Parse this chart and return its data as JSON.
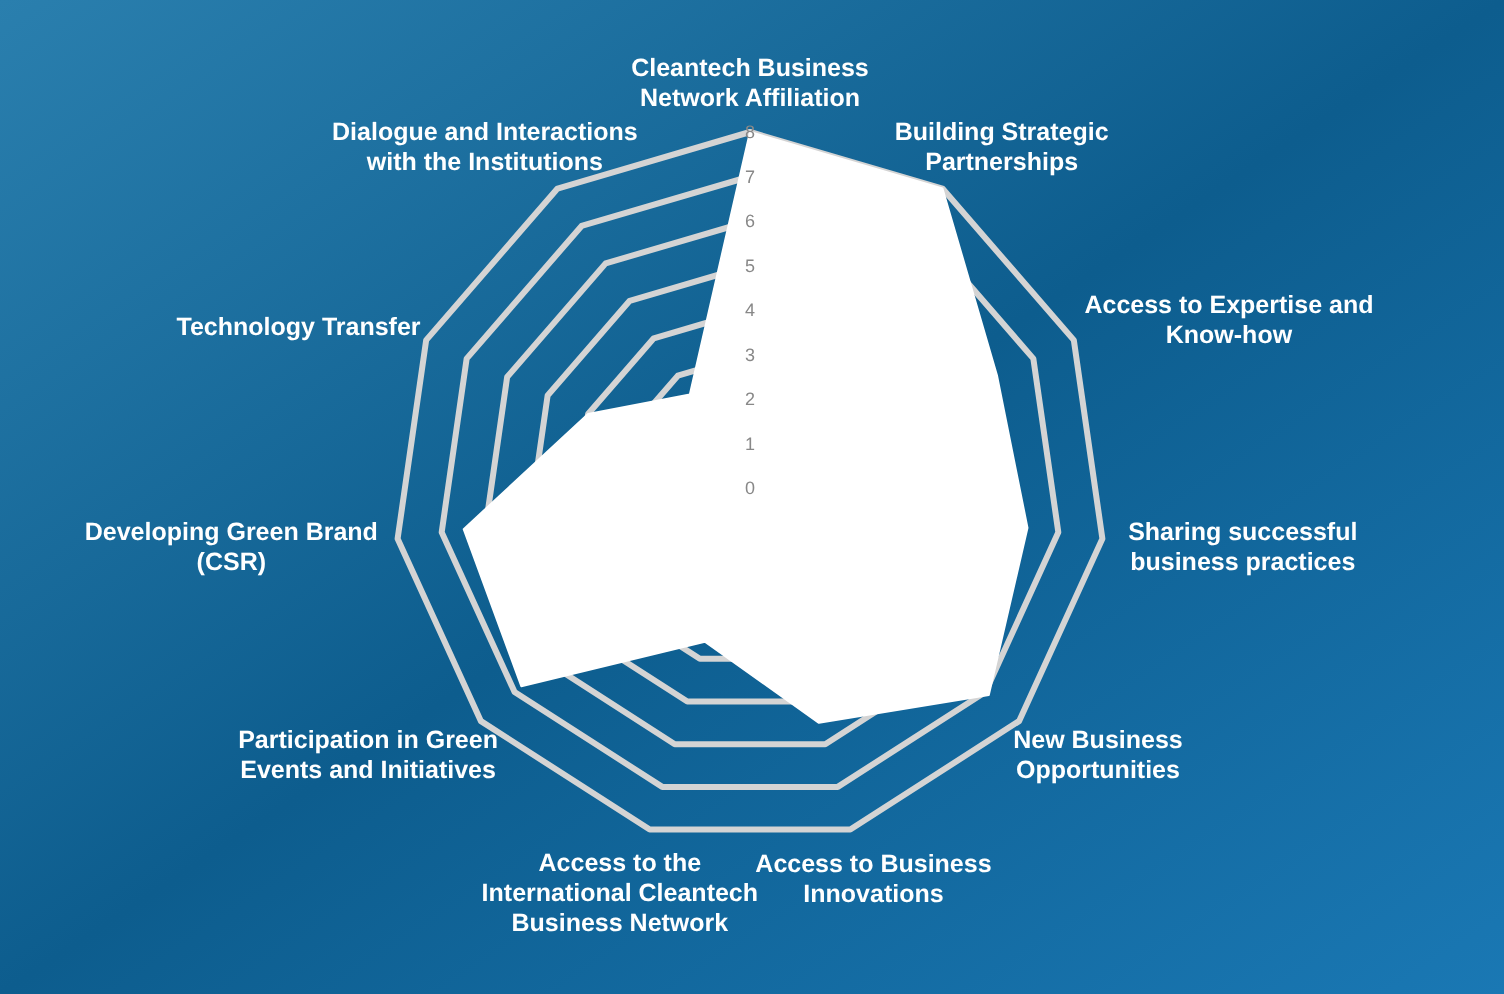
{
  "chart_data": {
    "type": "radar",
    "categories": [
      "Cleantech Business Network Affiliation",
      "Building Strategic Partnerships",
      "Access to Expertise and Know-how",
      "Sharing successful business practices",
      "New Business Opportunities",
      "Access to Business Innovations",
      "Access to the International Cleantech Business Network",
      "Participation in Green Events and Initiatives",
      "Developing Green Brand (CSR)",
      "Technology Transfer",
      "Dialogue and Interactions with the Institutions"
    ],
    "series": [
      {
        "color": "#ffffff",
        "values": [
          8,
          8,
          6.1,
          6.3,
          7.1,
          5.5,
          3.6,
          6.8,
          6.5,
          4,
          2.5
        ]
      }
    ],
    "ylim": [
      0,
      8
    ],
    "yticks": [
      0,
      1,
      2,
      3,
      4,
      5,
      6,
      7,
      8
    ],
    "grid": true
  }
}
